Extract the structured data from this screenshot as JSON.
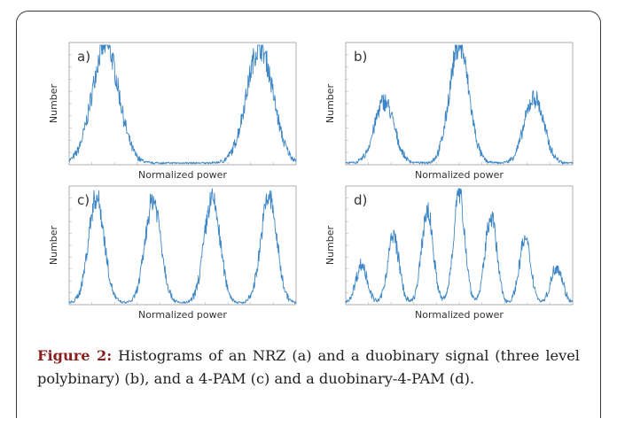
{
  "caption": {
    "label": "Figure 2:",
    "text": " Histograms of an NRZ (a) and a duobinary signal (three level polybinary) (b), and a 4-PAM (c) and a duobinary-4-PAM (d)."
  },
  "colors": {
    "trace": "#3d86c6",
    "frame": "#9a9a9a",
    "grid_tick": "#b5b5b5"
  },
  "chart_data": [
    {
      "type": "line",
      "panel": "a)",
      "xlabel": "Normalized power",
      "ylabel": "Number",
      "xlim": [
        0,
        1
      ],
      "ylim": [
        0,
        1
      ],
      "peaks": [
        {
          "x": 0.16,
          "height": 1.0
        },
        {
          "x": 0.84,
          "height": 0.98
        }
      ]
    },
    {
      "type": "line",
      "panel": "b)",
      "xlabel": "Normalized power",
      "ylabel": "Number",
      "xlim": [
        0,
        1
      ],
      "ylim": [
        0,
        1
      ],
      "peaks": [
        {
          "x": 0.17,
          "height": 0.52
        },
        {
          "x": 0.5,
          "height": 1.0
        },
        {
          "x": 0.83,
          "height": 0.55
        }
      ]
    },
    {
      "type": "line",
      "panel": "c)",
      "xlabel": "Normalized power",
      "ylabel": "Number",
      "xlim": [
        0,
        1
      ],
      "ylim": [
        0,
        1
      ],
      "peaks": [
        {
          "x": 0.12,
          "height": 0.92
        },
        {
          "x": 0.37,
          "height": 0.9
        },
        {
          "x": 0.63,
          "height": 0.9
        },
        {
          "x": 0.88,
          "height": 0.92
        }
      ]
    },
    {
      "type": "line",
      "panel": "d)",
      "xlabel": "Normalized power",
      "ylabel": "Number",
      "xlim": [
        0,
        1
      ],
      "ylim": [
        0,
        1
      ],
      "peaks": [
        {
          "x": 0.07,
          "height": 0.33
        },
        {
          "x": 0.21,
          "height": 0.58
        },
        {
          "x": 0.36,
          "height": 0.8
        },
        {
          "x": 0.5,
          "height": 0.95
        },
        {
          "x": 0.64,
          "height": 0.76
        },
        {
          "x": 0.79,
          "height": 0.55
        },
        {
          "x": 0.93,
          "height": 0.32
        }
      ]
    }
  ]
}
